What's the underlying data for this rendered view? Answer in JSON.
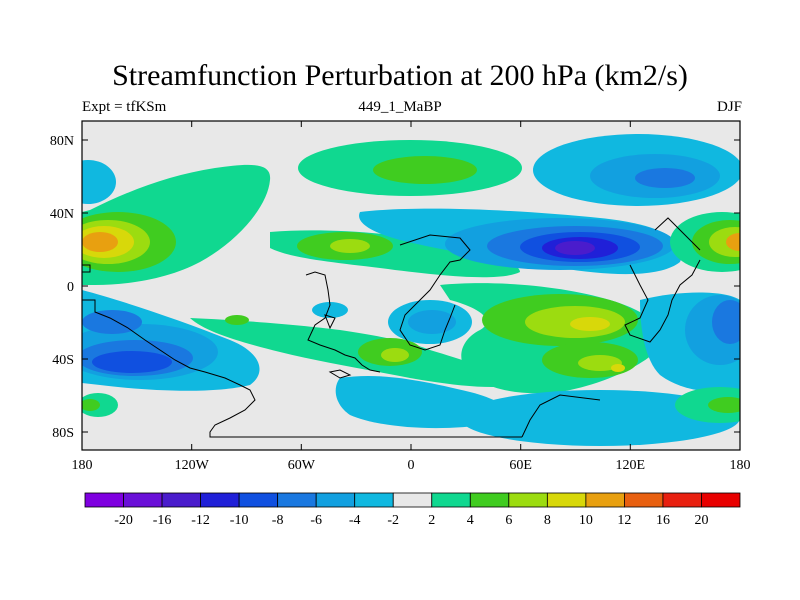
{
  "title": "Streamfunction Perturbation at 200 hPa (km2/s)",
  "left_label": "Expt = tfKSm",
  "center_label": "449_1_MaBP",
  "right_label": "DJF",
  "map": {
    "lat_ticks": [
      "80N",
      "40N",
      "0",
      "40S",
      "80S"
    ],
    "lon_ticks": [
      "180",
      "120W",
      "60W",
      "0",
      "60E",
      "120E",
      "180"
    ]
  },
  "colorbar": {
    "labels": [
      "-20",
      "-16",
      "-12",
      "-10",
      "-8",
      "-6",
      "-4",
      "-2",
      "2",
      "4",
      "6",
      "8",
      "10",
      "12",
      "16",
      "20"
    ],
    "colors": [
      "#7f00e0",
      "#6a10d8",
      "#4a1ccc",
      "#2020d8",
      "#1050e0",
      "#1a78e0",
      "#12a0e0",
      "#10b8e0",
      "#e8e8e8",
      "#10d890",
      "#40cc20",
      "#9cdc10",
      "#d8d80a",
      "#e8a010",
      "#e86010",
      "#e82010",
      "#e80000"
    ]
  }
}
